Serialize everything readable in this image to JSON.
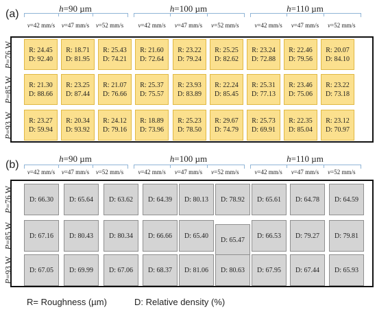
{
  "hatch_prefix": "h",
  "power_prefix": "P",
  "hatch_spacings": [
    "=90 µm",
    "=100 µm",
    "=110 µm"
  ],
  "speed_prefix": "v",
  "speeds": [
    "=42 mm/s",
    "=47 mm/s",
    "=52 mm/s"
  ],
  "powers": [
    "=76 W",
    "=85 W",
    "=93 W"
  ],
  "panels": [
    {
      "label": "(a)",
      "rows": [
        [
          [
            "R: 24.45",
            "D: 92.40"
          ],
          [
            "R: 18.71",
            "D: 81.95"
          ],
          [
            "R: 25.43",
            "D: 74.21"
          ],
          [
            "R: 21.60",
            "D: 72.64"
          ],
          [
            "R: 23.22",
            "D: 79.24"
          ],
          [
            "R: 25.25",
            "D: 82.62"
          ],
          [
            "R: 23.24",
            "D: 72.88"
          ],
          [
            "R: 22.46",
            "D: 79.56"
          ],
          [
            "R: 20.07",
            "D: 84.10"
          ]
        ],
        [
          [
            "R: 21.30",
            "D: 88.66"
          ],
          [
            "R: 23.25",
            "D: 87.44"
          ],
          [
            "R: 21.07",
            "D: 76.66"
          ],
          [
            "R: 25.37",
            "D: 75.57"
          ],
          [
            "R: 23.93",
            "D: 83.89"
          ],
          [
            "R: 22.24",
            "D: 85.45"
          ],
          [
            "R: 25.31",
            "D: 77.13"
          ],
          [
            "R: 23.46",
            "D: 75.06"
          ],
          [
            "R: 23.22",
            "D: 73.18"
          ]
        ],
        [
          [
            "R: 23.27",
            "D: 59.94"
          ],
          [
            "R: 20.34",
            "D: 93.92"
          ],
          [
            "R: 24.12",
            "D: 79.16"
          ],
          [
            "R: 18.89",
            "D: 73.96"
          ],
          [
            "R: 25.23",
            "D: 78.50"
          ],
          [
            "R: 29.67",
            "D: 74.79"
          ],
          [
            "R: 25.73",
            "D: 69.91"
          ],
          [
            "R: 22.35",
            "D: 85.04"
          ],
          [
            "R: 23.12",
            "D: 70.97"
          ]
        ]
      ]
    },
    {
      "label": "(b)",
      "rows": [
        [
          "D: 66.30",
          "D: 65.64",
          "D: 63.62",
          "D: 64.39",
          "D: 80.13",
          "D: 78.92",
          "D: 65.61",
          "D: 64.78",
          "D: 64.59"
        ],
        [
          "D: 67.16",
          "D: 80.43",
          "D: 80.34",
          "D: 66.66",
          "D: 65.40",
          "D: 65.47",
          "D: 66.53",
          "D: 79.27",
          "D: 79.81"
        ],
        [
          "D: 67.05",
          "D: 69.99",
          "D: 67.06",
          "D: 68.37",
          "D: 81.06",
          "D: 80.63",
          "D: 67.95",
          "D: 67.44",
          "D: 65.93"
        ]
      ]
    }
  ],
  "legend": {
    "roughness": "R= Roughness (µm)",
    "density": "D: Relative density (%)"
  }
}
